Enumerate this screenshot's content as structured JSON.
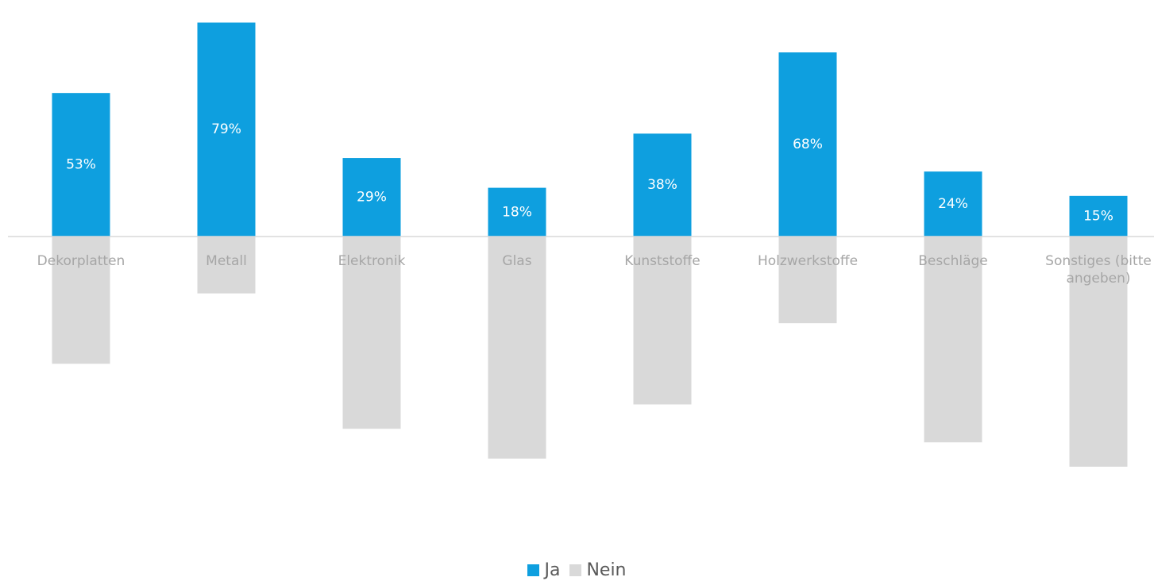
{
  "chart_data": {
    "type": "diverging-bar",
    "categories": [
      "Dekorplatten",
      "Metall",
      "Elektronik",
      "Glas",
      "Kunststoffe",
      "Holzwerkstoffe",
      "Beschläge",
      "Sonstiges (bitte angeben)"
    ],
    "series": [
      {
        "name": "Ja",
        "color": "#0e9fdf",
        "values": [
          53,
          79,
          29,
          18,
          38,
          68,
          24,
          15
        ],
        "value_labels": [
          "53%",
          "79%",
          "29%",
          "18%",
          "38%",
          "68%",
          "24%",
          "15%"
        ]
      },
      {
        "name": "Nein",
        "color": "#d9d9d9",
        "values": [
          -47,
          -21,
          -71,
          -82,
          -62,
          -32,
          -76,
          -85
        ]
      }
    ],
    "legend": "bottom"
  }
}
